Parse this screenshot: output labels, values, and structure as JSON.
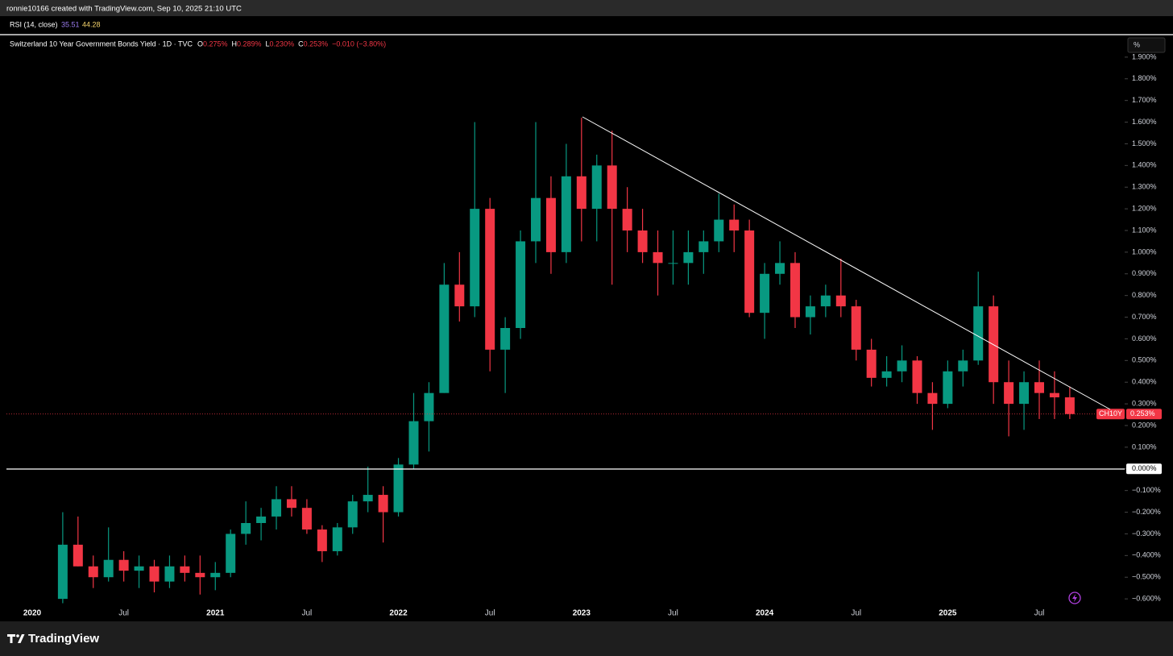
{
  "header": {
    "credit": "ronnie10166 created with TradingView.com, Sep 10, 2025 21:10 UTC"
  },
  "indicator": {
    "name": "RSI (14, close)",
    "value1": "35.51",
    "value2": "44.28"
  },
  "footer": {
    "brand": "TradingView"
  },
  "chart_data": {
    "type": "candlestick",
    "title": "Switzerland 10 Year Government Bonds Yield · 1D · TVC",
    "ohlc_legend": [
      {
        "key": "O",
        "value": "0.275%"
      },
      {
        "key": "H",
        "value": "0.289%"
      },
      {
        "key": "L",
        "value": "0.230%"
      },
      {
        "key": "C",
        "value": "0.253%"
      }
    ],
    "change": "−0.010 (−3.80%)",
    "unit": "%",
    "symbol_label": "CH10Y",
    "last_price_label": "0.253%",
    "up_color": "#089981",
    "down_color": "#f23645",
    "categories": [
      "2020",
      null,
      null,
      null,
      null,
      null,
      "Jul",
      null,
      null,
      null,
      null,
      null,
      "2021",
      null,
      null,
      null,
      null,
      null,
      "Jul",
      null,
      null,
      null,
      null,
      null,
      "2022",
      null,
      null,
      null,
      null,
      null,
      "Jul",
      null,
      null,
      null,
      null,
      null,
      "2023",
      null,
      null,
      null,
      null,
      null,
      "Jul",
      null,
      null,
      null,
      null,
      null,
      "2024",
      null,
      null,
      null,
      null,
      null,
      "Jul",
      null,
      null,
      null,
      null,
      null,
      "2025",
      null,
      null,
      null,
      null,
      null,
      "Jul",
      null,
      null
    ],
    "open": [
      null,
      null,
      -0.6,
      -0.35,
      -0.45,
      -0.5,
      -0.42,
      -0.47,
      -0.45,
      -0.52,
      -0.45,
      -0.48,
      -0.5,
      -0.48,
      -0.3,
      -0.25,
      -0.22,
      -0.14,
      -0.18,
      -0.28,
      -0.38,
      -0.27,
      -0.15,
      -0.12,
      -0.2,
      0.02,
      0.22,
      0.35,
      0.85,
      0.75,
      1.2,
      0.55,
      0.65,
      1.05,
      1.25,
      1.0,
      1.35,
      1.2,
      1.4,
      1.2,
      1.1,
      1.0,
      0.95,
      0.95,
      1.0,
      1.05,
      1.15,
      1.1,
      0.72,
      0.9,
      0.95,
      0.7,
      0.75,
      0.8,
      0.75,
      0.55,
      0.42,
      0.45,
      0.5,
      0.35,
      0.3,
      0.45,
      0.5,
      0.75,
      0.4,
      0.3,
      0.4,
      0.35,
      0.33
    ],
    "high": [
      null,
      null,
      -0.2,
      -0.22,
      -0.4,
      -0.27,
      -0.38,
      -0.4,
      -0.42,
      -0.4,
      -0.4,
      -0.4,
      -0.43,
      -0.28,
      -0.15,
      -0.18,
      -0.08,
      -0.08,
      -0.14,
      -0.26,
      -0.25,
      -0.12,
      0.01,
      -0.08,
      0.05,
      0.35,
      0.4,
      0.95,
      1.0,
      1.6,
      1.25,
      0.7,
      1.1,
      1.6,
      1.35,
      1.5,
      1.62,
      1.45,
      1.56,
      1.3,
      1.2,
      1.1,
      1.1,
      1.1,
      1.1,
      1.27,
      1.22,
      1.15,
      0.95,
      1.05,
      1.0,
      0.8,
      0.85,
      0.97,
      0.78,
      0.6,
      0.52,
      0.57,
      0.52,
      0.4,
      0.5,
      0.55,
      0.91,
      0.8,
      0.5,
      0.45,
      0.5,
      0.45,
      0.38
    ],
    "low": [
      null,
      null,
      -0.62,
      -0.45,
      -0.55,
      -0.52,
      -0.52,
      -0.55,
      -0.57,
      -0.55,
      -0.52,
      -0.58,
      -0.56,
      -0.5,
      -0.35,
      -0.33,
      -0.28,
      -0.22,
      -0.3,
      -0.43,
      -0.4,
      -0.3,
      -0.2,
      -0.34,
      -0.22,
      0.0,
      0.08,
      0.35,
      0.68,
      0.7,
      0.45,
      0.35,
      0.6,
      0.95,
      0.9,
      0.95,
      1.05,
      1.05,
      0.85,
      1.0,
      0.95,
      0.8,
      0.85,
      0.85,
      0.9,
      1.0,
      1.0,
      0.7,
      0.6,
      0.85,
      0.65,
      0.62,
      0.7,
      0.7,
      0.5,
      0.38,
      0.38,
      0.4,
      0.3,
      0.18,
      0.28,
      0.38,
      0.48,
      0.3,
      0.15,
      0.18,
      0.23,
      0.23,
      0.23
    ],
    "close": [
      null,
      null,
      -0.35,
      -0.45,
      -0.5,
      -0.42,
      -0.47,
      -0.45,
      -0.52,
      -0.45,
      -0.48,
      -0.5,
      -0.48,
      -0.3,
      -0.25,
      -0.22,
      -0.14,
      -0.18,
      -0.28,
      -0.38,
      -0.27,
      -0.15,
      -0.12,
      -0.2,
      0.02,
      0.22,
      0.35,
      0.85,
      0.75,
      1.2,
      0.55,
      0.65,
      1.05,
      1.25,
      1.0,
      1.35,
      1.2,
      1.4,
      1.2,
      1.1,
      1.0,
      0.95,
      0.95,
      1.0,
      1.05,
      1.15,
      1.1,
      0.72,
      0.9,
      0.95,
      0.7,
      0.75,
      0.8,
      0.75,
      0.55,
      0.42,
      0.45,
      0.5,
      0.35,
      0.3,
      0.45,
      0.5,
      0.75,
      0.4,
      0.3,
      0.4,
      0.35,
      0.33,
      0.253
    ],
    "ylim": [
      -0.7,
      2.0
    ],
    "yticks": [
      {
        "value": -0.6,
        "label": "−0.600%"
      },
      {
        "value": -0.5,
        "label": "−0.500%"
      },
      {
        "value": -0.4,
        "label": "−0.400%"
      },
      {
        "value": -0.3,
        "label": "−0.300%"
      },
      {
        "value": -0.2,
        "label": "−0.200%"
      },
      {
        "value": -0.1,
        "label": "−0.100%"
      },
      {
        "value": 0,
        "label": "0.000%"
      },
      {
        "value": 0.1,
        "label": "0.100%"
      },
      {
        "value": 0.2,
        "label": "0.200%"
      },
      {
        "value": 0.3,
        "label": "0.300%"
      },
      {
        "value": 0.4,
        "label": "0.400%"
      },
      {
        "value": 0.5,
        "label": "0.500%"
      },
      {
        "value": 0.6,
        "label": "0.600%"
      },
      {
        "value": 0.7,
        "label": "0.700%"
      },
      {
        "value": 0.8,
        "label": "0.800%"
      },
      {
        "value": 0.9,
        "label": "0.900%"
      },
      {
        "value": 1.0,
        "label": "1.000%"
      },
      {
        "value": 1.1,
        "label": "1.100%"
      },
      {
        "value": 1.2,
        "label": "1.200%"
      },
      {
        "value": 1.3,
        "label": "1.300%"
      },
      {
        "value": 1.4,
        "label": "1.400%"
      },
      {
        "value": 1.5,
        "label": "1.500%"
      },
      {
        "value": 1.6,
        "label": "1.600%"
      },
      {
        "value": 1.7,
        "label": "1.700%"
      },
      {
        "value": 1.8,
        "label": "1.800%"
      },
      {
        "value": 1.9,
        "label": "1.900%"
      }
    ]
  }
}
